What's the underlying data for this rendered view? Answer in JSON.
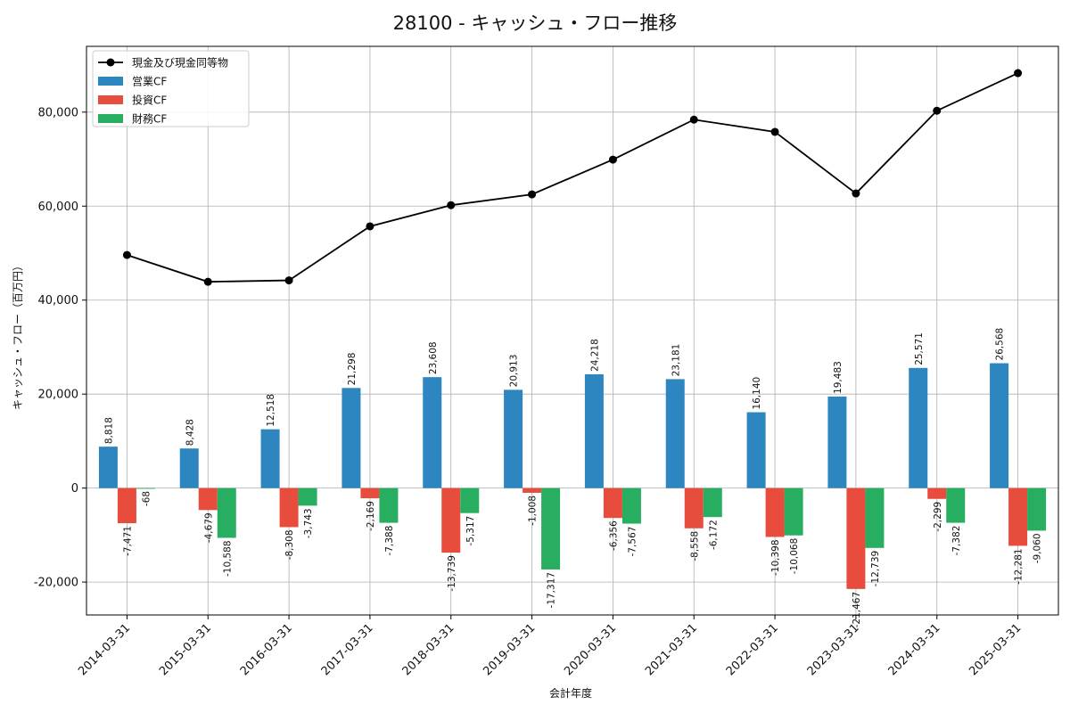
{
  "chart_data": {
    "type": "bar",
    "title": "28100 - キャッシュ・フロー推移",
    "xlabel": "会計年度",
    "ylabel": "キャッシュ・フロー（百万円）",
    "ylim": [
      -27000,
      94000
    ],
    "yticks": [
      -20000,
      0,
      20000,
      40000,
      60000,
      80000
    ],
    "ytick_labels": [
      "-20,000",
      "0",
      "20,000",
      "40,000",
      "60,000",
      "80,000"
    ],
    "grid": true,
    "legend_position": "top-left",
    "categories": [
      "2014-03-31",
      "2015-03-31",
      "2016-03-31",
      "2017-03-31",
      "2018-03-31",
      "2019-03-31",
      "2020-03-31",
      "2021-03-31",
      "2022-03-31",
      "2023-03-31",
      "2024-03-31",
      "2025-03-31"
    ],
    "line_series": {
      "name": "現金及び現金同等物",
      "color": "#000000",
      "values": [
        49600,
        43900,
        44200,
        55700,
        60200,
        62500,
        69900,
        78400,
        75800,
        62700,
        80300,
        88300
      ]
    },
    "series": [
      {
        "name": "営業CF",
        "color": "#2e86c1",
        "values": [
          8818,
          8428,
          12518,
          21298,
          23608,
          20913,
          24218,
          23181,
          16140,
          19483,
          25571,
          26568
        ],
        "labels": [
          "8,818",
          "8,428",
          "12,518",
          "21,298",
          "23,608",
          "20,913",
          "24,218",
          "23,181",
          "16,140",
          "19,483",
          "25,571",
          "26,568"
        ]
      },
      {
        "name": "投資CF",
        "color": "#e74c3c",
        "values": [
          -7471,
          -4679,
          -8308,
          -2169,
          -13739,
          -1008,
          -6356,
          -8558,
          -10398,
          -21467,
          -2299,
          -12281
        ],
        "labels": [
          "-7,471",
          "-4,679",
          "-8,308",
          "-2,169",
          "-13,739",
          "-1,008",
          "-6,356",
          "-8,558",
          "-10,398",
          "-21,467",
          "-2,299",
          "-12,281"
        ]
      },
      {
        "name": "財務CF",
        "color": "#27ae60",
        "values": [
          -68,
          -10588,
          -3743,
          -7388,
          -5317,
          -17317,
          -7567,
          -6172,
          -10068,
          -12739,
          -7382,
          -9060
        ],
        "labels": [
          "-68",
          "-10,588",
          "-3,743",
          "-7,388",
          "-5,317",
          "-17,317",
          "-7,567",
          "-6,172",
          "-10,068",
          "-12,739",
          "-7,382",
          "-9,060"
        ]
      }
    ]
  }
}
